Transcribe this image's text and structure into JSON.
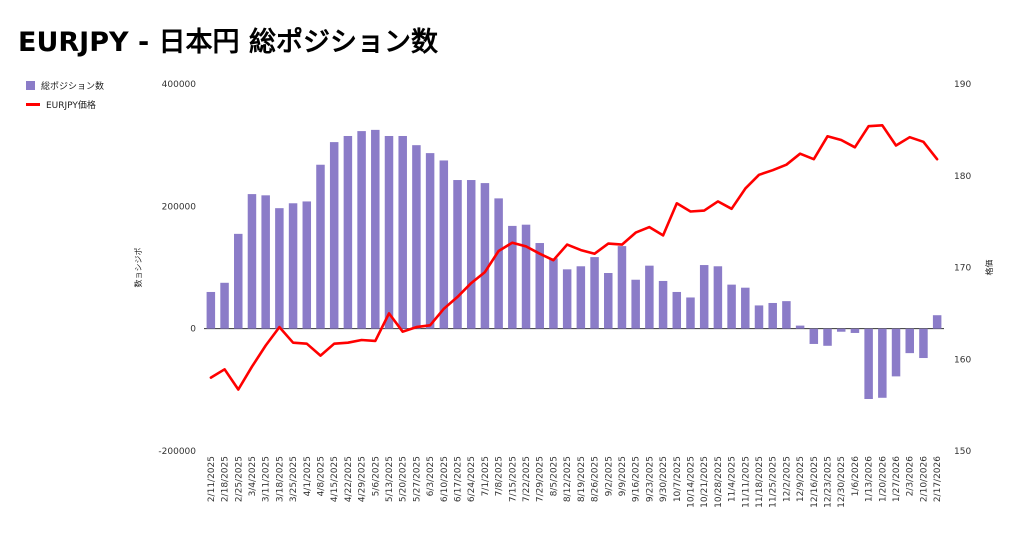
{
  "chart_data": {
    "type": "bar",
    "title": "EURJPY - 日本円 総ポジション数",
    "legend_position": "top-left",
    "grid": false,
    "categories": [
      "2/11/2025",
      "2/18/2025",
      "2/25/2025",
      "3/4/2025",
      "3/11/2025",
      "3/18/2025",
      "3/25/2025",
      "4/1/2025",
      "4/8/2025",
      "4/15/2025",
      "4/22/2025",
      "4/29/2025",
      "5/6/2025",
      "5/13/2025",
      "5/20/2025",
      "5/27/2025",
      "6/3/2025",
      "6/10/2025",
      "6/17/2025",
      "6/24/2025",
      "7/1/2025",
      "7/8/2025",
      "7/15/2025",
      "7/22/2025",
      "7/29/2025",
      "8/5/2025",
      "8/12/2025",
      "8/19/2025",
      "8/26/2025",
      "9/2/2025",
      "9/9/2025",
      "9/16/2025",
      "9/23/2025",
      "9/30/2025",
      "10/7/2025",
      "10/14/2025",
      "10/21/2025",
      "10/28/2025",
      "11/4/2025",
      "11/11/2025",
      "11/18/2025",
      "11/25/2025",
      "12/2/2025",
      "12/9/2025",
      "12/16/2025",
      "12/23/2025",
      "12/30/2025",
      "1/6/2026",
      "1/13/2026",
      "1/20/2026",
      "1/27/2026",
      "2/3/2026",
      "2/10/2026",
      "2/17/2026"
    ],
    "y_left": {
      "label": "数ョシジポ",
      "ylim": [
        -200000,
        400000
      ],
      "ticks": [
        -200000,
        0,
        200000,
        400000
      ]
    },
    "y_right": {
      "label": "格価",
      "ylim": [
        150,
        190
      ],
      "ticks": [
        150,
        160,
        170,
        180,
        190
      ]
    },
    "series": [
      {
        "name": "総ポジション数",
        "type": "bar",
        "axis": "left",
        "color": "#8b7cc8",
        "values": [
          60000,
          75000,
          155000,
          220000,
          218000,
          197000,
          205000,
          208000,
          268000,
          305000,
          315000,
          323000,
          325000,
          315000,
          315000,
          300000,
          287000,
          275000,
          243000,
          243000,
          238000,
          213000,
          168000,
          170000,
          140000,
          115000,
          97000,
          102000,
          117000,
          91000,
          135000,
          80000,
          103000,
          78000,
          60000,
          51000,
          104000,
          102000,
          72000,
          67000,
          38000,
          42000,
          45000,
          5000,
          -25000,
          -28000,
          -5000,
          -7000,
          -115000,
          -113000,
          -78000,
          -40000,
          -48000,
          22000
        ]
      },
      {
        "name": "EURJPY価格",
        "type": "line",
        "axis": "right",
        "color": "#ff0000",
        "values": [
          158.0,
          158.9,
          156.7,
          159.2,
          161.5,
          163.5,
          161.8,
          161.7,
          160.4,
          161.7,
          161.8,
          162.1,
          162.0,
          165.0,
          163.0,
          163.5,
          163.7,
          165.5,
          166.8,
          168.3,
          169.5,
          171.8,
          172.7,
          172.3,
          171.5,
          170.8,
          172.5,
          171.9,
          171.5,
          172.6,
          172.5,
          173.8,
          174.4,
          173.5,
          177.0,
          176.1,
          176.2,
          177.2,
          176.4,
          178.6,
          180.1,
          180.6,
          181.2,
          182.4,
          181.8,
          184.3,
          183.9,
          183.1,
          185.4,
          185.5,
          183.3,
          184.2,
          183.7,
          181.8
        ]
      }
    ]
  }
}
